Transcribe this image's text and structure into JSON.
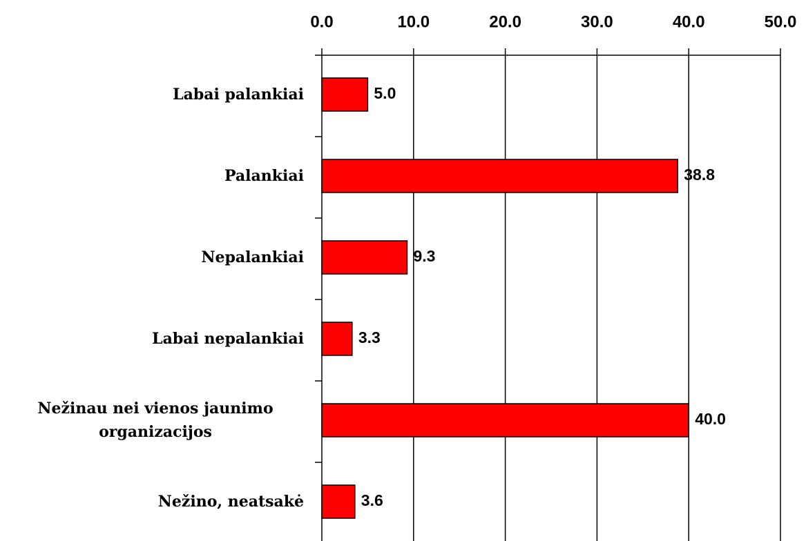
{
  "chart_data": {
    "type": "bar",
    "orientation": "horizontal",
    "categories": [
      "Labai palankiai",
      "Palankiai",
      "Nepalankiai",
      "Labai nepalankiai",
      "Nežinau nei vienos jaunimo organizacijos",
      "Nežino, neatsakė"
    ],
    "values": [
      5.0,
      38.8,
      9.3,
      3.3,
      40.0,
      3.6
    ],
    "value_labels": [
      "5.0",
      "38.8",
      "9.3",
      "3.3",
      "40.0",
      "3.6"
    ],
    "color": "#ff0000",
    "xlim": [
      0,
      50
    ],
    "xticks": [
      {
        "value": 0,
        "label": "0.0"
      },
      {
        "value": 10,
        "label": "10.0"
      },
      {
        "value": 20,
        "label": "20.0"
      },
      {
        "value": 30,
        "label": "30.0"
      },
      {
        "value": 40,
        "label": "40.0"
      },
      {
        "value": 50,
        "label": "50.0"
      }
    ],
    "grid": true
  }
}
